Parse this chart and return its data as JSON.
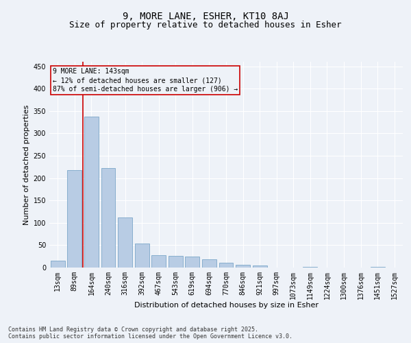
{
  "title1": "9, MORE LANE, ESHER, KT10 8AJ",
  "title2": "Size of property relative to detached houses in Esher",
  "xlabel": "Distribution of detached houses by size in Esher",
  "ylabel": "Number of detached properties",
  "categories": [
    "13sqm",
    "89sqm",
    "164sqm",
    "240sqm",
    "316sqm",
    "392sqm",
    "467sqm",
    "543sqm",
    "619sqm",
    "694sqm",
    "770sqm",
    "846sqm",
    "921sqm",
    "997sqm",
    "1073sqm",
    "1149sqm",
    "1224sqm",
    "1300sqm",
    "1376sqm",
    "1451sqm",
    "1527sqm"
  ],
  "values": [
    15,
    217,
    338,
    222,
    112,
    54,
    27,
    26,
    25,
    19,
    10,
    6,
    5,
    0,
    0,
    2,
    0,
    0,
    0,
    2,
    0
  ],
  "bar_color": "#b8cce4",
  "bar_edge_color": "#7ba7c9",
  "marker_line_color": "#cc0000",
  "annotation_text": "9 MORE LANE: 143sqm\n← 12% of detached houses are smaller (127)\n87% of semi-detached houses are larger (906) →",
  "annotation_box_color": "#cc0000",
  "ylim": [
    0,
    460
  ],
  "yticks": [
    0,
    50,
    100,
    150,
    200,
    250,
    300,
    350,
    400,
    450
  ],
  "footer1": "Contains HM Land Registry data © Crown copyright and database right 2025.",
  "footer2": "Contains public sector information licensed under the Open Government Licence v3.0.",
  "bg_color": "#eef2f8",
  "grid_color": "#ffffff",
  "title_fontsize": 10,
  "subtitle_fontsize": 9,
  "tick_fontsize": 7,
  "axis_label_fontsize": 8,
  "annotation_fontsize": 7,
  "footer_fontsize": 6
}
